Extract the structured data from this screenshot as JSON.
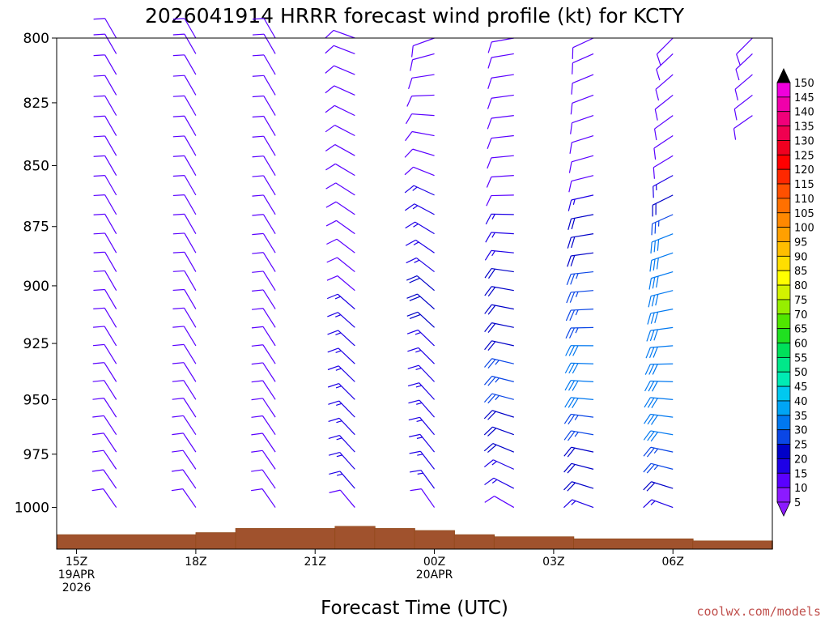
{
  "colors": {
    "ground": "#a0522d",
    "ground_edge": "#8b4513",
    "credit": "#c0504d"
  },
  "credit": "coolwx.com/models",
  "chart_data": {
    "type": "wind-barb-profile",
    "title": "2026041914 HRRR forecast wind profile (kt) for KCTY",
    "xlabel": "Forecast Time (UTC)",
    "ylabel": "",
    "x_ticks": [
      {
        "hour": 15,
        "lines": [
          "15Z",
          "19APR",
          "2026"
        ]
      },
      {
        "hour": 18,
        "lines": [
          "18Z"
        ]
      },
      {
        "hour": 21,
        "lines": [
          "21Z"
        ]
      },
      {
        "hour": 24,
        "lines": [
          "00Z",
          "20APR"
        ]
      },
      {
        "hour": 27,
        "lines": [
          "03Z"
        ]
      },
      {
        "hour": 30,
        "lines": [
          "06Z"
        ]
      }
    ],
    "xlim": [
      14.5,
      32.5
    ],
    "y_ticks": [
      "800",
      "825",
      "850",
      "875",
      "900",
      "925",
      "950",
      "975",
      "1000"
    ],
    "ylim_hpa": [
      1020,
      800
    ],
    "pressure_levels_hpa": [
      1000,
      991,
      982,
      974,
      966,
      958,
      950,
      942,
      934,
      926,
      918,
      910,
      902,
      894,
      886,
      878,
      870,
      862,
      854,
      846,
      838,
      830,
      822,
      814,
      806,
      800
    ],
    "surface_pressure_hpa": [
      {
        "hours": [
          14.5,
          18
        ],
        "p": 1013
      },
      {
        "hours": [
          18,
          19
        ],
        "p": 1012
      },
      {
        "hours": [
          19,
          21.5
        ],
        "p": 1010
      },
      {
        "hours": [
          21.5,
          22.5
        ],
        "p": 1009
      },
      {
        "hours": [
          22.5,
          23.5
        ],
        "p": 1010
      },
      {
        "hours": [
          23.5,
          24.5
        ],
        "p": 1011
      },
      {
        "hours": [
          24.5,
          25.5
        ],
        "p": 1013
      },
      {
        "hours": [
          25.5,
          27.5
        ],
        "p": 1014
      },
      {
        "hours": [
          27.5,
          30.5
        ],
        "p": 1015
      },
      {
        "hours": [
          30.5,
          32.5
        ],
        "p": 1016
      }
    ],
    "wind_profiles": [
      {
        "hour": 16,
        "dir": [
          [
            1000,
            325
          ],
          [
            900,
            330
          ],
          [
            800,
            330
          ]
        ],
        "speed_kt": [
          [
            1000,
            8
          ],
          [
            900,
            8
          ],
          [
            800,
            9
          ]
        ]
      },
      {
        "hour": 18,
        "dir": [
          [
            1000,
            325
          ],
          [
            900,
            330
          ],
          [
            800,
            330
          ]
        ],
        "speed_kt": [
          [
            1000,
            8
          ],
          [
            900,
            8
          ],
          [
            800,
            9
          ]
        ]
      },
      {
        "hour": 20,
        "dir": [
          [
            1000,
            325
          ],
          [
            900,
            328
          ],
          [
            800,
            330
          ]
        ],
        "speed_kt": [
          [
            1000,
            8
          ],
          [
            900,
            9
          ],
          [
            800,
            9
          ]
        ]
      },
      {
        "hour": 22,
        "dir": [
          [
            1000,
            320
          ],
          [
            900,
            310
          ],
          [
            850,
            300
          ],
          [
            800,
            290
          ]
        ],
        "speed_kt": [
          [
            1000,
            12
          ],
          [
            950,
            15
          ],
          [
            900,
            12
          ],
          [
            850,
            10
          ],
          [
            800,
            9
          ]
        ]
      },
      {
        "hour": 24,
        "dir": [
          [
            1000,
            325
          ],
          [
            900,
            310
          ],
          [
            850,
            290
          ],
          [
            800,
            250
          ]
        ],
        "speed_kt": [
          [
            1000,
            12
          ],
          [
            950,
            17
          ],
          [
            900,
            18
          ],
          [
            850,
            12
          ],
          [
            820,
            10
          ],
          [
            800,
            10
          ]
        ]
      },
      {
        "hour": 26,
        "dir": [
          [
            1000,
            300
          ],
          [
            950,
            285
          ],
          [
            900,
            280
          ],
          [
            850,
            265
          ],
          [
            800,
            260
          ]
        ],
        "speed_kt": [
          [
            1000,
            10
          ],
          [
            975,
            18
          ],
          [
            950,
            24
          ],
          [
            925,
            22
          ],
          [
            900,
            20
          ],
          [
            850,
            10
          ],
          [
            800,
            10
          ]
        ]
      },
      {
        "hour": 28,
        "dir": [
          [
            1000,
            290
          ],
          [
            950,
            275
          ],
          [
            900,
            265
          ],
          [
            850,
            255
          ],
          [
            800,
            245
          ]
        ],
        "speed_kt": [
          [
            1000,
            15
          ],
          [
            975,
            22
          ],
          [
            950,
            28
          ],
          [
            925,
            28
          ],
          [
            900,
            25
          ],
          [
            875,
            20
          ],
          [
            850,
            10
          ],
          [
            800,
            10
          ]
        ]
      },
      {
        "hour": 30,
        "dir": [
          [
            1000,
            290
          ],
          [
            950,
            275
          ],
          [
            900,
            255
          ],
          [
            850,
            240
          ],
          [
            800,
            225
          ]
        ],
        "speed_kt": [
          [
            1000,
            15
          ],
          [
            975,
            26
          ],
          [
            950,
            32
          ],
          [
            925,
            32
          ],
          [
            900,
            30
          ],
          [
            875,
            28
          ],
          [
            850,
            12
          ],
          [
            800,
            10
          ]
        ]
      },
      {
        "hour": 32,
        "dir": [
          [
            830,
            235
          ],
          [
            800,
            225
          ]
        ],
        "speed_kt": [
          [
            830,
            12
          ],
          [
            800,
            12
          ]
        ]
      }
    ],
    "colorbar": {
      "labels": [
        "150",
        "145",
        "140",
        "135",
        "130",
        "125",
        "120",
        "115",
        "110",
        "105",
        "100",
        "95",
        "90",
        "85",
        "80",
        "75",
        "70",
        "65",
        "60",
        "55",
        "50",
        "45",
        "40",
        "35",
        "30",
        "25",
        "20",
        "15",
        "10",
        "5"
      ],
      "bins": [
        {
          "lo": 0,
          "hi": 10,
          "color": "#8c1aff"
        },
        {
          "lo": 10,
          "hi": 15,
          "color": "#5a00ff"
        },
        {
          "lo": 15,
          "hi": 20,
          "color": "#1e00e6"
        },
        {
          "lo": 20,
          "hi": 25,
          "color": "#0000c8"
        },
        {
          "lo": 25,
          "hi": 30,
          "color": "#0a46e6"
        },
        {
          "lo": 30,
          "hi": 35,
          "color": "#0078f0"
        },
        {
          "lo": 35,
          "hi": 40,
          "color": "#00a5f5"
        },
        {
          "lo": 40,
          "hi": 45,
          "color": "#00c8f0"
        },
        {
          "lo": 45,
          "hi": 50,
          "color": "#00ebb4"
        },
        {
          "lo": 50,
          "hi": 55,
          "color": "#00e88a"
        },
        {
          "lo": 55,
          "hi": 60,
          "color": "#00e05a"
        },
        {
          "lo": 60,
          "hi": 65,
          "color": "#20e020"
        },
        {
          "lo": 65,
          "hi": 70,
          "color": "#50e600"
        },
        {
          "lo": 70,
          "hi": 75,
          "color": "#96ee00"
        },
        {
          "lo": 75,
          "hi": 80,
          "color": "#d2f200"
        },
        {
          "lo": 80,
          "hi": 85,
          "color": "#ffff00"
        },
        {
          "lo": 85,
          "hi": 90,
          "color": "#ffde00"
        },
        {
          "lo": 90,
          "hi": 95,
          "color": "#ffbe00"
        },
        {
          "lo": 95,
          "hi": 100,
          "color": "#ffa000"
        },
        {
          "lo": 100,
          "hi": 105,
          "color": "#ff8800"
        },
        {
          "lo": 105,
          "hi": 110,
          "color": "#ff7000"
        },
        {
          "lo": 110,
          "hi": 115,
          "color": "#ff5000"
        },
        {
          "lo": 115,
          "hi": 120,
          "color": "#ff2800"
        },
        {
          "lo": 120,
          "hi": 125,
          "color": "#ff0000"
        },
        {
          "lo": 125,
          "hi": 130,
          "color": "#f00020"
        },
        {
          "lo": 130,
          "hi": 135,
          "color": "#f00050"
        },
        {
          "lo": 135,
          "hi": 140,
          "color": "#f0007a"
        },
        {
          "lo": 140,
          "hi": 145,
          "color": "#f000aa"
        },
        {
          "lo": 145,
          "hi": 150,
          "color": "#f000dc"
        },
        {
          "lo": 150,
          "hi": 999,
          "color": "#000000"
        }
      ]
    }
  }
}
